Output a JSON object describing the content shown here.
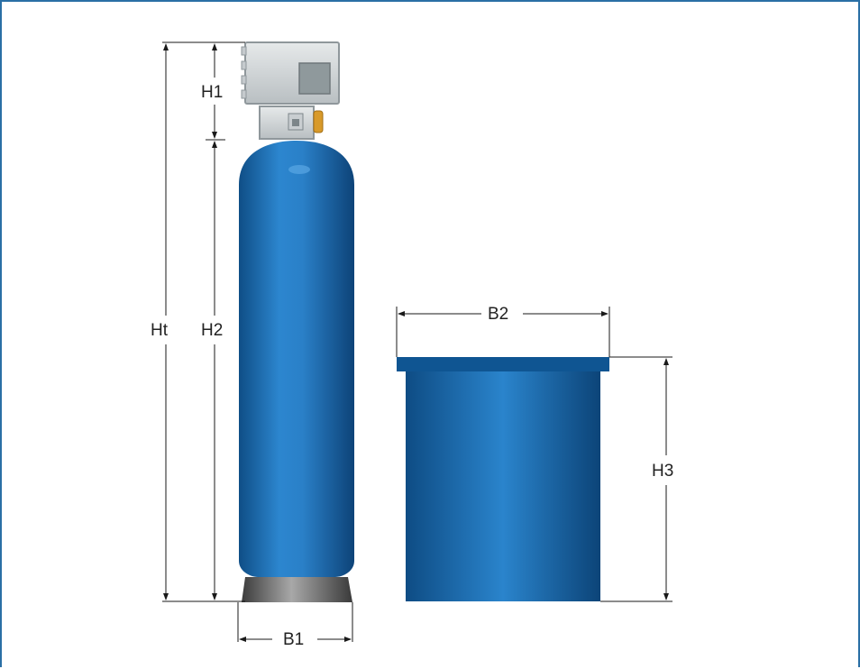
{
  "diagram": {
    "dimension_labels": {
      "ht": "Ht",
      "h1": "H1",
      "h2": "H2",
      "h3": "H3",
      "b1": "B1",
      "b2": "B2"
    },
    "colors": {
      "frame_border": "#2a6fa5",
      "tank_blue": "#1e6fb3",
      "control_head_grey": "#d2d6d8",
      "base_grey": "#6e6e6e",
      "fitting_brass": "#d89a2a",
      "dimension_line": "#1a1a1a"
    },
    "components": [
      "control-valve-head",
      "resin-tank",
      "brine-tank"
    ]
  }
}
